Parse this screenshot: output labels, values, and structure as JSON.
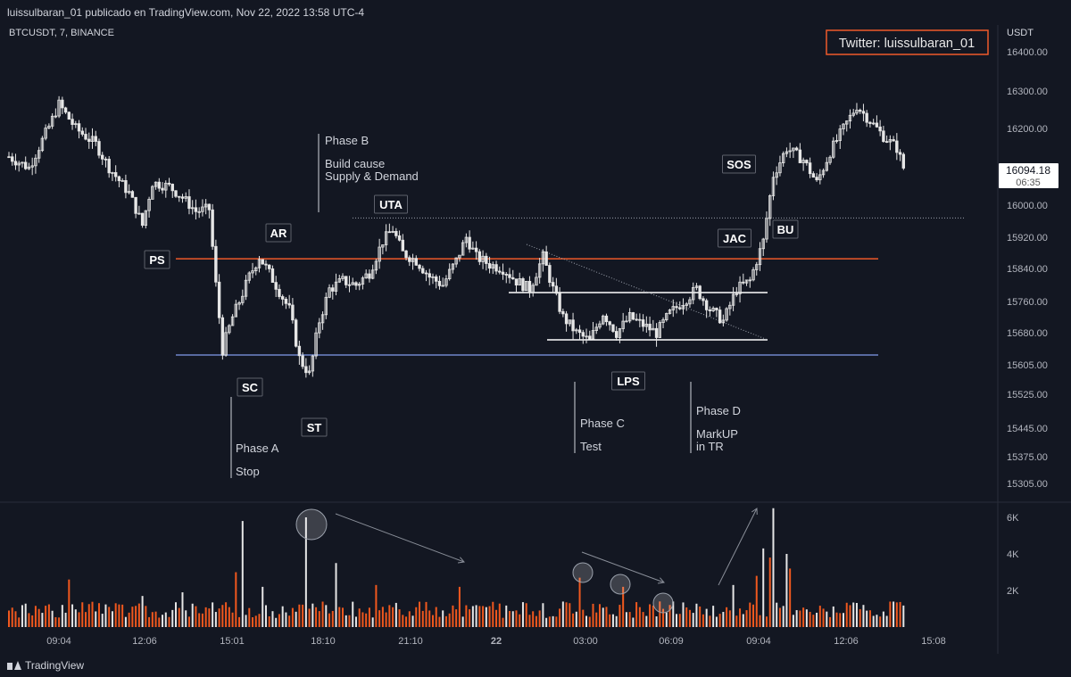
{
  "header": {
    "publish_line": "luissulbaran_01 publicado en TradingView.com, Nov 22, 2022 13:58 UTC-4"
  },
  "footer": {
    "brand": "TradingView"
  },
  "colors": {
    "background": "#131722",
    "candle": "#e6e6e6",
    "volume_up": "#e6e6e6",
    "volume_down": "#f0581e",
    "resistance_line": "#ef5a2a",
    "support_line": "#6f86c9",
    "badge_border": "#ef5a2a"
  },
  "chart_data": {
    "type": "candlestick",
    "symbol_label": "BTCUSDT, 7, BINANCE",
    "currency_label": "USDT",
    "y_ticks": [
      "16400.00",
      "16300.00",
      "16200.00",
      "16100.00",
      "16000.00",
      "15920.00",
      "15840.00",
      "15760.00",
      "15680.00",
      "15605.00",
      "15525.00",
      "15445.00",
      "15375.00",
      "15305.00"
    ],
    "x_ticks": [
      "09:04",
      "12:06",
      "15:01",
      "18:10",
      "21:10",
      "22",
      "03:00",
      "06:09",
      "09:04",
      "12:06",
      "15:08"
    ],
    "volume_ticks": [
      "6K",
      "4K",
      "2K"
    ],
    "last_price": "16094.18",
    "countdown": "06:35",
    "watermark_badge": "Twitter: luissulbaran_01",
    "levels": {
      "resistance": 15865,
      "support": 15628,
      "dotted_high": 15968
    },
    "price_anchors": [
      [
        0,
        16128
      ],
      [
        6,
        16100
      ],
      [
        12,
        16205
      ],
      [
        15,
        16265
      ],
      [
        20,
        16200
      ],
      [
        26,
        16160
      ],
      [
        30,
        16100
      ],
      [
        36,
        16032
      ],
      [
        40,
        15950
      ],
      [
        43,
        16060
      ],
      [
        48,
        16050
      ],
      [
        52,
        16020
      ],
      [
        56,
        15985
      ],
      [
        60,
        15990
      ],
      [
        62,
        15800
      ],
      [
        64,
        15640
      ],
      [
        67,
        15720
      ],
      [
        72,
        15820
      ],
      [
        75,
        15870
      ],
      [
        80,
        15800
      ],
      [
        84,
        15740
      ],
      [
        87,
        15620
      ],
      [
        90,
        15580
      ],
      [
        93,
        15710
      ],
      [
        96,
        15790
      ],
      [
        100,
        15810
      ],
      [
        104,
        15800
      ],
      [
        108,
        15830
      ],
      [
        112,
        15910
      ],
      [
        115,
        15940
      ],
      [
        118,
        15880
      ],
      [
        122,
        15860
      ],
      [
        126,
        15820
      ],
      [
        130,
        15800
      ],
      [
        134,
        15860
      ],
      [
        137,
        15920
      ],
      [
        140,
        15870
      ],
      [
        144,
        15850
      ],
      [
        148,
        15840
      ],
      [
        152,
        15810
      ],
      [
        156,
        15790
      ],
      [
        160,
        15870
      ],
      [
        163,
        15790
      ],
      [
        166,
        15720
      ],
      [
        170,
        15680
      ],
      [
        174,
        15660
      ],
      [
        178,
        15730
      ],
      [
        182,
        15680
      ],
      [
        186,
        15720
      ],
      [
        190,
        15700
      ],
      [
        194,
        15680
      ],
      [
        198,
        15730
      ],
      [
        202,
        15760
      ],
      [
        206,
        15790
      ],
      [
        210,
        15740
      ],
      [
        214,
        15710
      ],
      [
        218,
        15790
      ],
      [
        222,
        15810
      ],
      [
        226,
        15910
      ],
      [
        229,
        16080
      ],
      [
        233,
        16150
      ],
      [
        238,
        16120
      ],
      [
        242,
        16060
      ],
      [
        246,
        16140
      ],
      [
        250,
        16200
      ],
      [
        254,
        16260
      ],
      [
        258,
        16220
      ],
      [
        262,
        16180
      ],
      [
        266,
        16150
      ],
      [
        268,
        16100
      ]
    ],
    "annotations": {
      "badges": [
        {
          "key": "PS",
          "text": "PS"
        },
        {
          "key": "AR",
          "text": "AR"
        },
        {
          "key": "SC",
          "text": "SC"
        },
        {
          "key": "ST",
          "text": "ST"
        },
        {
          "key": "UTA",
          "text": "UTA"
        },
        {
          "key": "LPS",
          "text": "LPS"
        },
        {
          "key": "JAC",
          "text": "JAC"
        },
        {
          "key": "SOS",
          "text": "SOS"
        },
        {
          "key": "BU",
          "text": "BU"
        }
      ],
      "phase_a": [
        "Phase A",
        "Stop"
      ],
      "phase_b": [
        "Phase B",
        "Build cause",
        "Supply & Demand"
      ],
      "phase_c": [
        "Phase C",
        "Test"
      ],
      "phase_d": [
        "Phase D",
        "MarkUP",
        "in TR"
      ]
    }
  }
}
